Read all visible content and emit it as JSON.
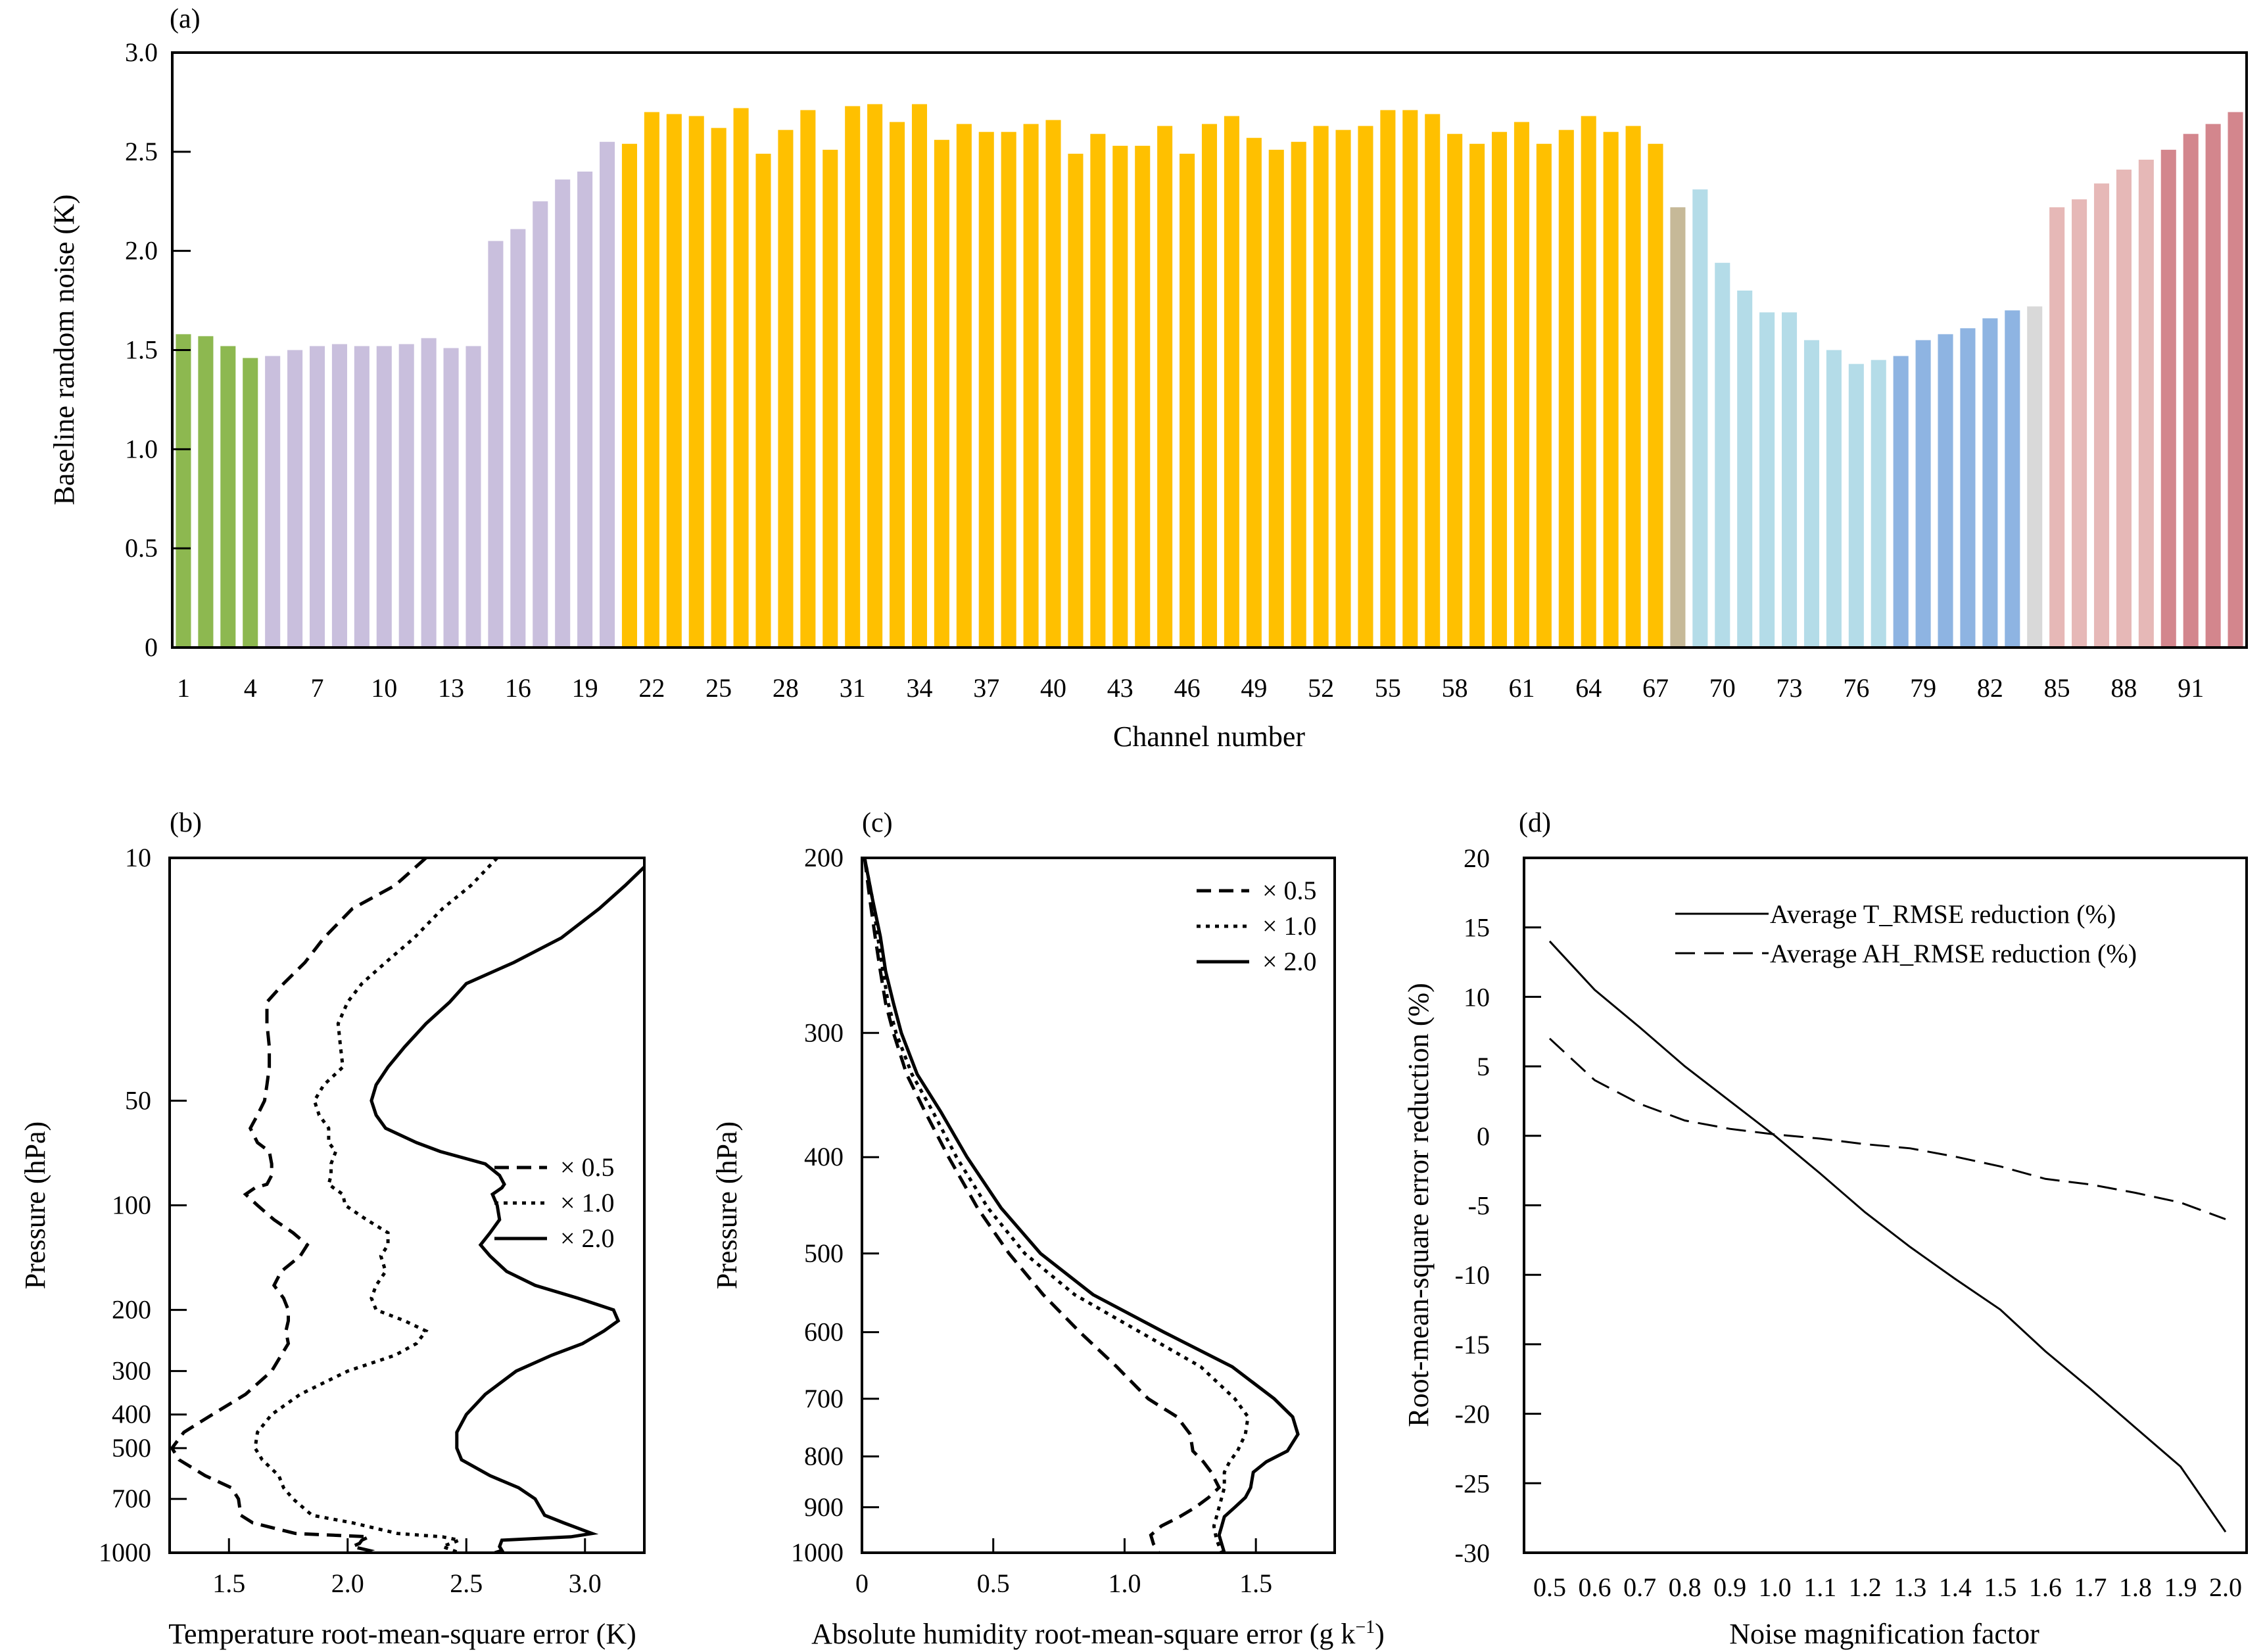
{
  "chart_data": [
    {
      "panel": "a",
      "type": "bar",
      "panel_label": "(a)",
      "xlabel": "Channel number",
      "ylabel": "Baseline random noise (K)",
      "ylim": [
        0,
        3.0
      ],
      "yticks": [
        "0",
        "0.5",
        "1.0",
        "1.5",
        "2.0",
        "2.5",
        "3.0"
      ],
      "xtick_labels": [
        "1",
        "4",
        "7",
        "10",
        "13",
        "16",
        "19",
        "22",
        "25",
        "28",
        "31",
        "34",
        "37",
        "40",
        "43",
        "46",
        "49",
        "52",
        "55",
        "58",
        "61",
        "64",
        "67",
        "70",
        "73",
        "76",
        "79",
        "82",
        "85",
        "88",
        "91"
      ],
      "channels_start": 1,
      "values": [
        1.58,
        1.57,
        1.52,
        1.46,
        1.47,
        1.5,
        1.52,
        1.53,
        1.52,
        1.52,
        1.53,
        1.56,
        1.51,
        1.52,
        2.05,
        2.11,
        2.25,
        2.36,
        2.4,
        2.55,
        2.54,
        2.7,
        2.69,
        2.68,
        2.62,
        2.72,
        2.49,
        2.61,
        2.71,
        2.51,
        2.73,
        2.74,
        2.65,
        2.74,
        2.56,
        2.64,
        2.6,
        2.6,
        2.64,
        2.66,
        2.49,
        2.59,
        2.53,
        2.53,
        2.63,
        2.49,
        2.64,
        2.68,
        2.57,
        2.51,
        2.55,
        2.63,
        2.61,
        2.63,
        2.71,
        2.71,
        2.69,
        2.59,
        2.54,
        2.6,
        2.65,
        2.54,
        2.61,
        2.68,
        2.6,
        2.63,
        2.54,
        2.22,
        2.31,
        1.94,
        1.8,
        1.69,
        1.69,
        1.55,
        1.5,
        1.43,
        1.45,
        1.47,
        1.55,
        1.58,
        1.61,
        1.66,
        1.7,
        1.72,
        2.22,
        2.26,
        2.34,
        2.41,
        2.46,
        2.51,
        2.59,
        2.64,
        2.7
      ],
      "color_groups": [
        {
          "from": 1,
          "to": 4,
          "color": "#8db850"
        },
        {
          "from": 5,
          "to": 20,
          "color": "#c9bfdd"
        },
        {
          "from": 21,
          "to": 67,
          "color": "#ffc000"
        },
        {
          "from": 68,
          "to": 68,
          "color": "#c6b998"
        },
        {
          "from": 69,
          "to": 77,
          "color": "#b4dce8"
        },
        {
          "from": 78,
          "to": 83,
          "color": "#8eb4e2"
        },
        {
          "from": 84,
          "to": 84,
          "color": "#d9d9d9"
        },
        {
          "from": 85,
          "to": 89,
          "color": "#e6b8b7"
        },
        {
          "from": 90,
          "to": 93,
          "color": "#d3868d"
        }
      ]
    },
    {
      "panel": "b",
      "type": "line",
      "panel_label": "(b)",
      "xlabel": "Temperature root-mean-square error (K)",
      "ylabel": "Pressure (hPa)",
      "xlim": [
        1.25,
        3.25
      ],
      "xticks": [
        "1.5",
        "2.0",
        "2.5",
        "3.0"
      ],
      "ylim": [
        10,
        1000
      ],
      "yscale": "log",
      "yticks": [
        "10",
        "50",
        "100",
        "200",
        "300",
        "400",
        "500",
        "700",
        "1000"
      ],
      "legend_position": "center-right",
      "series": [
        {
          "name": "× 0.5",
          "style": "dashed",
          "x": [
            2.33,
            2.2,
            2.02,
            1.9,
            1.82,
            1.73,
            1.66,
            1.66,
            1.67,
            1.67,
            1.66,
            1.65,
            1.62,
            1.59,
            1.62,
            1.67,
            1.68,
            1.68,
            1.66,
            1.61,
            1.57,
            1.62,
            1.69,
            1.77,
            1.83,
            1.8,
            1.72,
            1.69,
            1.73,
            1.75,
            1.75,
            1.74,
            1.75,
            1.72,
            1.68,
            1.57,
            1.43,
            1.31,
            1.26,
            1.29,
            1.4,
            1.51,
            1.54,
            1.55,
            1.6,
            1.78,
            2.09,
            2.06,
            2.05,
            2.02,
            2.09,
            2.06
          ],
          "y": [
            10,
            12,
            14,
            17,
            20,
            23,
            26,
            30,
            35,
            40,
            45,
            50,
            55,
            60,
            66,
            70,
            76,
            82,
            87,
            89,
            93,
            100,
            110,
            120,
            130,
            140,
            155,
            170,
            185,
            200,
            215,
            230,
            250,
            270,
            300,
            350,
            400,
            450,
            500,
            540,
            600,
            650,
            700,
            780,
            820,
            880,
            900,
            920,
            940,
            960,
            985,
            1000
          ]
        },
        {
          "name": "× 1.0",
          "style": "dotted",
          "x": [
            2.63,
            2.52,
            2.4,
            2.28,
            2.16,
            2.06,
            2.0,
            1.96,
            1.97,
            1.98,
            1.9,
            1.86,
            1.88,
            1.92,
            1.92,
            1.95,
            1.93,
            1.93,
            1.92,
            1.94,
            1.98,
            1.99,
            2.08,
            2.17,
            2.17,
            2.14,
            2.16,
            2.12,
            2.1,
            2.12,
            2.24,
            2.33,
            2.29,
            2.2,
            2.0,
            1.8,
            1.68,
            1.62,
            1.61,
            1.64,
            1.71,
            1.73,
            1.77,
            1.85,
            2.02,
            2.21,
            2.4,
            2.47,
            2.4,
            2.47
          ],
          "y": [
            10,
            12,
            14,
            17,
            20,
            23,
            26,
            30,
            35,
            40,
            45,
            50,
            55,
            60,
            66,
            70,
            76,
            82,
            87,
            89,
            93,
            100,
            110,
            120,
            130,
            140,
            155,
            170,
            185,
            200,
            215,
            230,
            250,
            270,
            300,
            350,
            400,
            450,
            500,
            540,
            600,
            650,
            700,
            780,
            820,
            880,
            900,
            920,
            960,
            1000
          ]
        },
        {
          "name": "× 2.0",
          "style": "solid",
          "x": [
            3.29,
            3.17,
            3.06,
            2.9,
            2.7,
            2.5,
            2.43,
            2.33,
            2.24,
            2.17,
            2.12,
            2.1,
            2.12,
            2.16,
            2.29,
            2.39,
            2.58,
            2.64,
            2.66,
            2.65,
            2.61,
            2.63,
            2.64,
            2.6,
            2.56,
            2.6,
            2.67,
            2.79,
            2.97,
            3.12,
            3.14,
            3.08,
            2.99,
            2.86,
            2.71,
            2.58,
            2.5,
            2.46,
            2.46,
            2.48,
            2.6,
            2.72,
            2.79,
            2.83,
            2.91,
            3.03,
            2.94,
            2.65,
            2.64,
            2.65,
            2.62
          ],
          "y": [
            10,
            12,
            14,
            17,
            20,
            23,
            26,
            30,
            35,
            40,
            45,
            50,
            55,
            60,
            66,
            70,
            76,
            82,
            87,
            89,
            93,
            100,
            110,
            120,
            130,
            140,
            155,
            170,
            185,
            200,
            215,
            230,
            250,
            270,
            300,
            350,
            400,
            450,
            500,
            540,
            600,
            650,
            700,
            780,
            820,
            880,
            900,
            920,
            960,
            985,
            1000
          ]
        }
      ]
    },
    {
      "panel": "c",
      "type": "line",
      "panel_label": "(c)",
      "xlabel": "Absolute humidity root-mean-square error (g k",
      "xlabel_sup": "−1",
      "xlabel_end": ")",
      "ylabel": "Pressure (hPa)",
      "xlim": [
        0,
        1.8
      ],
      "xticks": [
        "0",
        "0.5",
        "1.0",
        "1.5"
      ],
      "ylim": [
        200,
        1000
      ],
      "yscale": "log",
      "yticks": [
        "200",
        "300",
        "400",
        "500",
        "600",
        "700",
        "800",
        "900",
        "1000"
      ],
      "legend_position": "top-right",
      "series": [
        {
          "name": "× 0.5",
          "style": "dashed",
          "x": [
            0.01,
            0.03,
            0.05,
            0.07,
            0.09,
            0.12,
            0.17,
            0.24,
            0.33,
            0.44,
            0.56,
            0.69,
            0.83,
            0.97,
            1.09,
            1.2,
            1.25,
            1.26,
            1.3,
            1.33,
            1.36,
            1.32,
            1.27,
            1.21,
            1.14,
            1.1,
            1.11,
            1.13
          ],
          "y": [
            200,
            220,
            240,
            260,
            280,
            300,
            330,
            360,
            400,
            450,
            500,
            550,
            600,
            650,
            700,
            730,
            760,
            790,
            810,
            830,
            860,
            880,
            900,
            920,
            940,
            960,
            980,
            1000
          ]
        },
        {
          "name": "× 1.0",
          "style": "dotted",
          "x": [
            0.01,
            0.04,
            0.06,
            0.08,
            0.1,
            0.13,
            0.19,
            0.27,
            0.36,
            0.48,
            0.62,
            0.81,
            1.06,
            1.29,
            1.42,
            1.47,
            1.46,
            1.43,
            1.4,
            1.38,
            1.38,
            1.37,
            1.36,
            1.35,
            1.34,
            1.35,
            1.37
          ],
          "y": [
            200,
            220,
            240,
            260,
            280,
            300,
            330,
            360,
            400,
            450,
            500,
            550,
            600,
            650,
            700,
            730,
            760,
            790,
            810,
            830,
            860,
            880,
            900,
            920,
            940,
            970,
            1000
          ]
        },
        {
          "name": "× 2.0",
          "style": "solid",
          "x": [
            0.01,
            0.04,
            0.07,
            0.09,
            0.12,
            0.15,
            0.21,
            0.3,
            0.4,
            0.53,
            0.68,
            0.88,
            1.15,
            1.41,
            1.57,
            1.64,
            1.66,
            1.62,
            1.54,
            1.49,
            1.48,
            1.46,
            1.42,
            1.38,
            1.37,
            1.36,
            1.37,
            1.38
          ],
          "y": [
            200,
            220,
            240,
            260,
            280,
            300,
            330,
            360,
            400,
            450,
            500,
            550,
            600,
            650,
            700,
            730,
            760,
            790,
            810,
            830,
            860,
            880,
            900,
            920,
            940,
            960,
            980,
            1000
          ]
        }
      ]
    },
    {
      "panel": "d",
      "type": "line",
      "panel_label": "(d)",
      "xlabel": "Noise magnification factor",
      "ylabel": "Root-mean-square error reduction (%)",
      "xlim": [
        0.5,
        2.0
      ],
      "ylim": [
        -30,
        20
      ],
      "yticks": [
        "-30",
        "-25",
        "-20",
        "-15",
        "-10",
        "-5",
        "0",
        "5",
        "10",
        "15",
        "20"
      ],
      "xtick_labels": [
        "0.5",
        "0.6",
        "0.7",
        "0.8",
        "0.9",
        "1.0",
        "1.1",
        "1.2",
        "1.3",
        "1.4",
        "1.5",
        "1.6",
        "1.7",
        "1.8",
        "1.9",
        "2.0"
      ],
      "legend_position": "top-right",
      "series": [
        {
          "name": "Average T_RMSE reduction (%)",
          "style": "solid",
          "x": [
            0.5,
            0.6,
            0.7,
            0.8,
            0.9,
            1.0,
            1.1,
            1.2,
            1.3,
            1.4,
            1.5,
            1.6,
            1.7,
            1.8,
            1.9,
            2.0
          ],
          "y": [
            14.0,
            10.5,
            7.8,
            5.0,
            2.5,
            0.0,
            -2.7,
            -5.5,
            -8.0,
            -10.3,
            -12.5,
            -15.5,
            -18.2,
            -21.0,
            -23.8,
            -28.5
          ]
        },
        {
          "name": "Average AH_RMSE reduction (%)",
          "style": "dashed",
          "x": [
            0.5,
            0.6,
            0.7,
            0.8,
            0.9,
            1.0,
            1.1,
            1.2,
            1.3,
            1.4,
            1.5,
            1.6,
            1.7,
            1.8,
            1.9,
            2.0
          ],
          "y": [
            7.0,
            4.0,
            2.3,
            1.1,
            0.5,
            0.1,
            -0.2,
            -0.6,
            -0.9,
            -1.5,
            -2.2,
            -3.1,
            -3.5,
            -4.1,
            -4.8,
            -6.0
          ]
        }
      ]
    }
  ]
}
